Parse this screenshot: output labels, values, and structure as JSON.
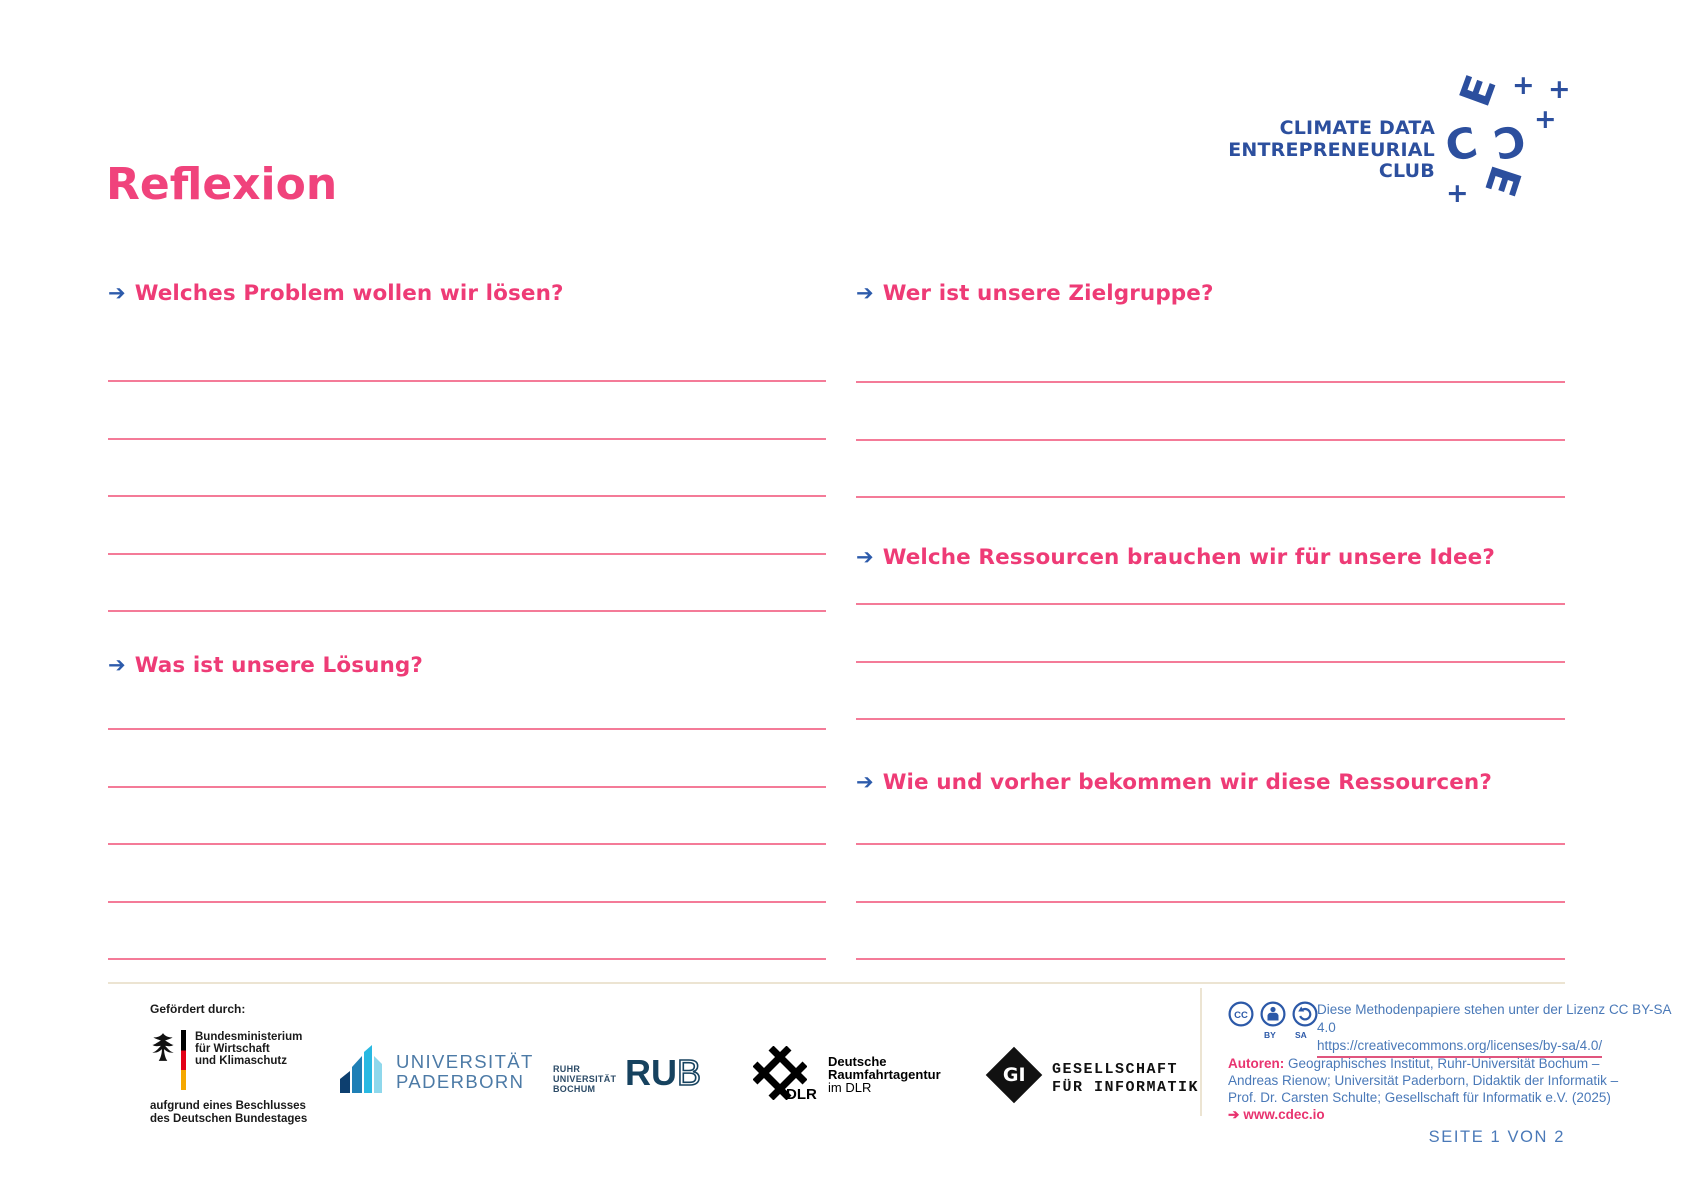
{
  "title": "Reflexion",
  "icons": {
    "arrow": "➔"
  },
  "brand": {
    "name_lines": [
      "CLIMATE DATA",
      "ENTREPRENEURIAL",
      "CLUB"
    ],
    "mark_letters": {
      "e_top": "E",
      "c_left": "C",
      "c_right": "C",
      "e_bottom": "E",
      "plus": "+"
    }
  },
  "form": {
    "blocks": [
      {
        "id": "l1",
        "label": "Welches Problem wollen wir lösen?",
        "lines": 5
      },
      {
        "id": "l2",
        "label": "Was ist unsere Lösung?",
        "lines": 5
      },
      {
        "id": "r1",
        "label": "Wer ist unsere Zielgruppe?",
        "lines": 3
      },
      {
        "id": "r2",
        "label": "Welche Ressourcen brauchen wir für unsere Idee?",
        "lines": 3
      },
      {
        "id": "r3",
        "label": "Wie und vorher bekommen wir diese Ressourcen?",
        "lines": 3
      }
    ]
  },
  "footer": {
    "funding": {
      "intro": "Gefördert durch:",
      "ministry_lines": [
        "Bundesministerium",
        "für Wirtschaft",
        "und Klimaschutz"
      ],
      "note_lines": [
        "aufgrund eines Beschlusses",
        "des Deutschen Bundestages"
      ]
    },
    "upb": {
      "lines": [
        "UNIVERSITÄT",
        "PADERBORN"
      ]
    },
    "rub": {
      "small_lines": [
        "RUHR",
        "UNIVERSITÄT",
        "BOCHUM"
      ],
      "big_bold": "RU",
      "big_light": "B"
    },
    "dlr": {
      "mark_label": "DLR",
      "bold_lines": [
        "Deutsche",
        "Raumfahrtagentur"
      ],
      "regular_line": "im DLR"
    },
    "gi": {
      "mark": "GI",
      "lines": [
        "GESELLSCHAFT",
        "FÜR INFORMATIK"
      ]
    },
    "license": {
      "cc": "CC",
      "by": "BY",
      "sa": "SA",
      "text": "Diese Methodenpapiere stehen unter der Lizenz CC BY-SA 4.0",
      "url": "https://creativecommons.org/licenses/by-sa/4.0/"
    },
    "authors": {
      "label": "Autoren:",
      "lines": [
        "Geographisches Institut, Ruhr-Universität Bochum –",
        "Andreas Rienow; Universität Paderborn, Didaktik der Informatik –",
        "Prof. Dr. Carsten Schulte; Gesellschaft für Informatik e.V. (2025)"
      ],
      "link": "www.cdec.io"
    },
    "page": "SEITE 1 VON 2"
  },
  "colors": {
    "heading_pink": "#ee3b76",
    "line_pink": "#f47b98",
    "brand_blue": "#2c4f9e",
    "arrow_blue": "#2d5bab",
    "light_blue_text": "#4a79b8",
    "beige_divider": "#ece4d2"
  }
}
